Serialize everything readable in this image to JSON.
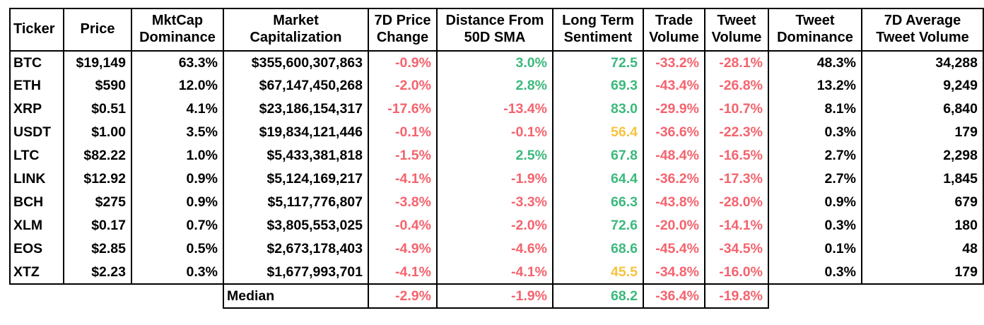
{
  "chart_data": {
    "type": "table",
    "palette": {
      "red": "#F4646E",
      "green": "#3CB97D",
      "yellow": "#F7C33F",
      "text": "#000000",
      "border": "#000000"
    },
    "columns": [
      {
        "id": "ticker",
        "label": "Ticker",
        "align": "left",
        "align_header": "left"
      },
      {
        "id": "price",
        "label": "Price",
        "align": "right",
        "align_header": "center"
      },
      {
        "id": "mktcap-dominance",
        "label": "MktCap\nDominance",
        "align": "right",
        "align_header": "center"
      },
      {
        "id": "market-capitalization",
        "label": "Market\nCapitalization",
        "align": "right",
        "align_header": "center"
      },
      {
        "id": "price-change-7d",
        "label": "7D Price\nChange",
        "align": "right",
        "align_header": "center"
      },
      {
        "id": "distance-50d-sma",
        "label": "Distance From\n50D SMA",
        "align": "right",
        "align_header": "center"
      },
      {
        "id": "long-term-sentiment",
        "label": "Long Term\nSentiment",
        "align": "right",
        "align_header": "center"
      },
      {
        "id": "trade-volume",
        "label": "Trade\nVolume",
        "align": "right",
        "align_header": "center"
      },
      {
        "id": "tweet-volume",
        "label": "Tweet\nVolume",
        "align": "right",
        "align_header": "center"
      },
      {
        "id": "tweet-dominance",
        "label": "Tweet\nDominance",
        "align": "right",
        "align_header": "center"
      },
      {
        "id": "avg-tweet-volume-7d",
        "label": "7D Average\nTweet Volume",
        "align": "right",
        "align_header": "center"
      }
    ],
    "rows": [
      {
        "values": [
          "BTC",
          "$19,149",
          "63.3%",
          "$355,600,307,863",
          "-0.9%",
          "3.0%",
          "72.5",
          "-33.2%",
          "-28.1%",
          "48.3%",
          "34,288"
        ],
        "colors": [
          "default",
          "default",
          "default",
          "default",
          "red",
          "green",
          "green",
          "red",
          "red",
          "default",
          "default"
        ]
      },
      {
        "values": [
          "ETH",
          "$590",
          "12.0%",
          "$67,147,450,268",
          "-2.0%",
          "2.8%",
          "69.3",
          "-43.4%",
          "-26.8%",
          "13.2%",
          "9,249"
        ],
        "colors": [
          "default",
          "default",
          "default",
          "default",
          "red",
          "green",
          "green",
          "red",
          "red",
          "default",
          "default"
        ]
      },
      {
        "values": [
          "XRP",
          "$0.51",
          "4.1%",
          "$23,186,154,317",
          "-17.6%",
          "-13.4%",
          "83.0",
          "-29.9%",
          "-10.7%",
          "8.1%",
          "6,840"
        ],
        "colors": [
          "default",
          "default",
          "default",
          "default",
          "red",
          "red",
          "green",
          "red",
          "red",
          "default",
          "default"
        ]
      },
      {
        "values": [
          "USDT",
          "$1.00",
          "3.5%",
          "$19,834,121,446",
          "-0.1%",
          "-0.1%",
          "56.4",
          "-36.6%",
          "-22.3%",
          "0.3%",
          "179"
        ],
        "colors": [
          "default",
          "default",
          "default",
          "default",
          "red",
          "red",
          "yellow",
          "red",
          "red",
          "default",
          "default"
        ]
      },
      {
        "values": [
          "LTC",
          "$82.22",
          "1.0%",
          "$5,433,381,818",
          "-1.5%",
          "2.5%",
          "67.8",
          "-48.4%",
          "-16.5%",
          "2.7%",
          "2,298"
        ],
        "colors": [
          "default",
          "default",
          "default",
          "default",
          "red",
          "green",
          "green",
          "red",
          "red",
          "default",
          "default"
        ]
      },
      {
        "values": [
          "LINK",
          "$12.92",
          "0.9%",
          "$5,124,169,217",
          "-4.1%",
          "-1.9%",
          "64.4",
          "-36.2%",
          "-17.3%",
          "2.7%",
          "1,845"
        ],
        "colors": [
          "default",
          "default",
          "default",
          "default",
          "red",
          "red",
          "green",
          "red",
          "red",
          "default",
          "default"
        ]
      },
      {
        "values": [
          "BCH",
          "$275",
          "0.9%",
          "$5,117,776,807",
          "-3.8%",
          "-3.3%",
          "66.3",
          "-43.8%",
          "-28.0%",
          "0.9%",
          "679"
        ],
        "colors": [
          "default",
          "default",
          "default",
          "default",
          "red",
          "red",
          "green",
          "red",
          "red",
          "default",
          "default"
        ]
      },
      {
        "values": [
          "XLM",
          "$0.17",
          "0.7%",
          "$3,805,553,025",
          "-0.4%",
          "-2.0%",
          "72.6",
          "-20.0%",
          "-14.1%",
          "0.3%",
          "180"
        ],
        "colors": [
          "default",
          "default",
          "default",
          "default",
          "red",
          "red",
          "green",
          "red",
          "red",
          "default",
          "default"
        ]
      },
      {
        "values": [
          "EOS",
          "$2.85",
          "0.5%",
          "$2,673,178,403",
          "-4.9%",
          "-4.6%",
          "68.6",
          "-45.4%",
          "-34.5%",
          "0.1%",
          "48"
        ],
        "colors": [
          "default",
          "default",
          "default",
          "default",
          "red",
          "red",
          "green",
          "red",
          "red",
          "default",
          "default"
        ]
      },
      {
        "values": [
          "XTZ",
          "$2.23",
          "0.3%",
          "$1,677,993,701",
          "-4.1%",
          "-4.1%",
          "45.5",
          "-34.8%",
          "-16.0%",
          "0.3%",
          "179"
        ],
        "colors": [
          "default",
          "default",
          "default",
          "default",
          "red",
          "red",
          "yellow",
          "red",
          "red",
          "default",
          "default"
        ]
      }
    ],
    "median_row": {
      "label": "Median",
      "values": [
        "-2.9%",
        "-1.9%",
        "68.2",
        "-36.4%",
        "-19.8%"
      ],
      "colors": [
        "red",
        "red",
        "green",
        "red",
        "red"
      ]
    }
  }
}
